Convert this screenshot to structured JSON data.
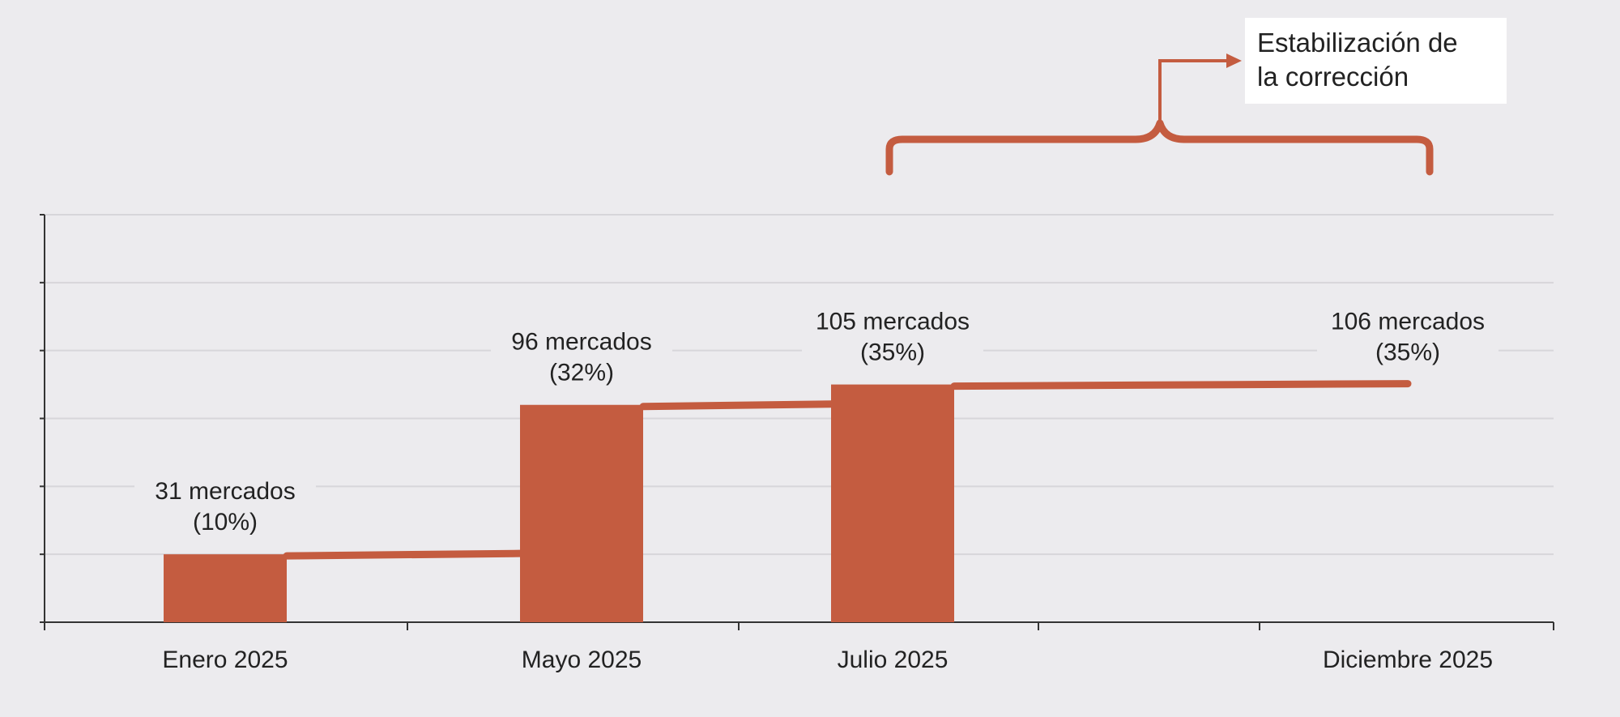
{
  "colors": {
    "background": "#ecebee",
    "bar": "#c45c40",
    "grid": "#d7d6da",
    "axis": "#333333",
    "text": "#222222",
    "callout_box": "#ffffff"
  },
  "chart_data": {
    "type": "bar",
    "title": "",
    "xlabel": "",
    "ylabel": "",
    "ylim": [
      0,
      60
    ],
    "categories": [
      "Enero 2025",
      "Mayo 2025",
      "Julio 2025",
      "Diciembre 2025"
    ],
    "series": [
      {
        "values": [
          10,
          32,
          35,
          35
        ],
        "labels": [
          [
            "31 mercados",
            "(10%)"
          ],
          [
            "96 mercados",
            "(32%)"
          ],
          [
            "105 mercados",
            "(35%)"
          ],
          [
            "106 mercados",
            "(35%)"
          ]
        ],
        "bars_drawn": [
          true,
          true,
          true,
          false
        ]
      }
    ],
    "connector": "step line joining the tops of consecutive values",
    "grid": true,
    "annotation": {
      "text": [
        "Estabilización de",
        "la corrección"
      ],
      "spans": [
        "Julio 2025",
        "Diciembre 2025"
      ],
      "style": "curly brace with arrow to text box"
    }
  }
}
